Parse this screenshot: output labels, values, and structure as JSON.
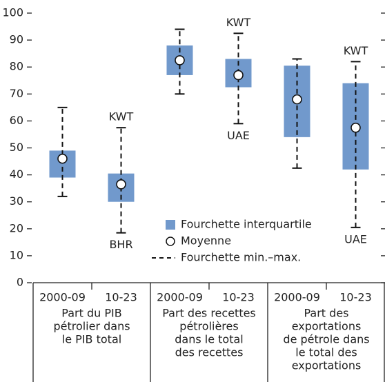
{
  "chart_data": {
    "type": "range-box",
    "color": "#7199cc",
    "ylim": [
      0,
      100
    ],
    "yticks": [
      0,
      10,
      20,
      30,
      40,
      50,
      60,
      70,
      80,
      90,
      100
    ],
    "categories": [
      "2000-09",
      "10-23",
      "2000-09",
      "10-23",
      "2000-09",
      "10-23"
    ],
    "groups": [
      [
        "Part du PIB",
        "pétrolier dans",
        "le PIB total"
      ],
      [
        "Part des recettes",
        "pétrolières",
        "dans le total",
        "des recettes"
      ],
      [
        "Part des",
        "exportations",
        "de pétrole dans",
        "le total des",
        "exportations"
      ]
    ],
    "boxes": [
      {
        "q1": 39,
        "q3": 49,
        "mean": 46,
        "min": 32,
        "max": 65
      },
      {
        "q1": 30,
        "q3": 40.5,
        "mean": 36.5,
        "min": 18.5,
        "max": 57.5,
        "top_label": "KWT",
        "bottom_label": "BHR"
      },
      {
        "q1": 77,
        "q3": 88,
        "mean": 82.5,
        "min": 70,
        "max": 94
      },
      {
        "q1": 72.5,
        "q3": 83,
        "mean": 77,
        "min": 59,
        "max": 92.5,
        "top_label": "KWT",
        "bottom_label": "UAE"
      },
      {
        "q1": 54,
        "q3": 80.5,
        "mean": 68,
        "min": 42.5,
        "max": 83
      },
      {
        "q1": 42,
        "q3": 74,
        "mean": 57.5,
        "min": 20.5,
        "max": 82,
        "top_label": "KWT",
        "bottom_label": "UAE"
      }
    ],
    "legend": [
      "Fourchette interquartile",
      "Moyenne",
      "Fourchette min.–max."
    ]
  }
}
